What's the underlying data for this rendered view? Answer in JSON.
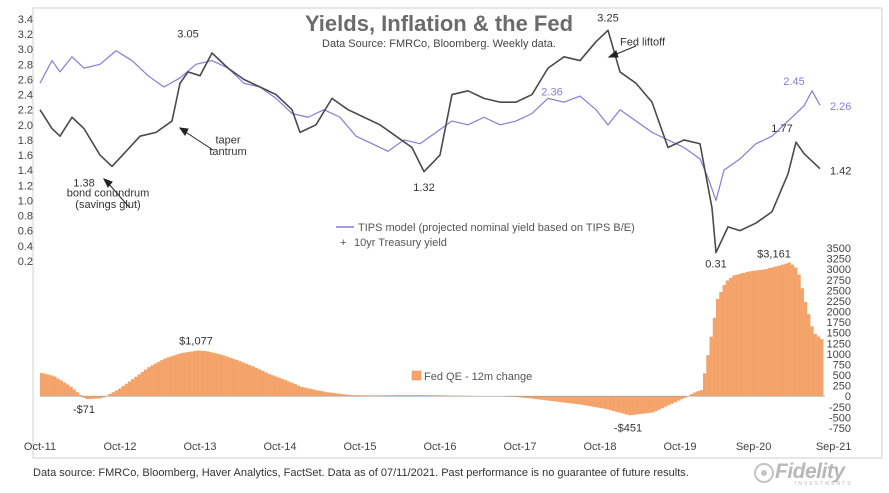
{
  "colors": {
    "tips": "#8b79d9",
    "treasury": "#4a4a4a",
    "qe": "#f4a46a",
    "qe_edge": "#e8894a"
  },
  "chart_data": [
    {
      "type": "line",
      "title": "Yields, Inflation & the Fed",
      "subtitle": "Data Source: FMRCo, Bloomberg. Weekly data.",
      "ylim": [
        0,
        3.4
      ],
      "yticks": [
        "3.4",
        "3.2",
        "3.0",
        "2.8",
        "2.6",
        "2.4",
        "2.2",
        "2.0",
        "1.8",
        "1.6",
        "1.4",
        "1.2",
        "1.0",
        "0.8",
        "0.6",
        "0.4",
        "0.2"
      ],
      "series": [
        {
          "name": "TIPS model (projected nominal yield based on TIPS B/E)",
          "color": "#8b79d9",
          "x": [
            2011.75,
            2011.9,
            2012.0,
            2012.15,
            2012.3,
            2012.5,
            2012.7,
            2012.9,
            2013.1,
            2013.3,
            2013.5,
            2013.7,
            2013.9,
            2014.1,
            2014.3,
            2014.5,
            2014.7,
            2014.9,
            2015.1,
            2015.3,
            2015.5,
            2015.7,
            2015.9,
            2016.1,
            2016.3,
            2016.5,
            2016.7,
            2016.9,
            2017.1,
            2017.3,
            2017.5,
            2017.7,
            2017.9,
            2018.1,
            2018.3,
            2018.5,
            2018.7,
            2018.85,
            2019.0,
            2019.2,
            2019.4,
            2019.6,
            2019.8,
            2020.0,
            2020.1,
            2020.2,
            2020.3,
            2020.5,
            2020.7,
            2020.9,
            2021.1,
            2021.3,
            2021.4,
            2021.5
          ],
          "y": [
            2.55,
            2.85,
            2.7,
            2.9,
            2.75,
            2.8,
            2.98,
            2.85,
            2.65,
            2.5,
            2.62,
            2.8,
            2.85,
            2.75,
            2.55,
            2.5,
            2.35,
            2.15,
            2.1,
            2.2,
            2.1,
            1.85,
            1.75,
            1.65,
            1.8,
            1.75,
            1.9,
            2.05,
            2.0,
            2.1,
            2.0,
            2.05,
            2.15,
            2.35,
            2.3,
            2.38,
            2.2,
            2.0,
            2.2,
            2.05,
            1.9,
            1.8,
            1.7,
            1.55,
            1.3,
            1.0,
            1.4,
            1.55,
            1.75,
            1.85,
            2.05,
            2.25,
            2.45,
            2.26
          ]
        },
        {
          "name": "10yr Treasury yield",
          "color": "#4a4a4a",
          "x": [
            2011.75,
            2011.9,
            2012.0,
            2012.15,
            2012.3,
            2012.5,
            2012.65,
            2012.8,
            2013.0,
            2013.2,
            2013.4,
            2013.5,
            2013.6,
            2013.75,
            2013.9,
            2014.1,
            2014.3,
            2014.5,
            2014.7,
            2014.9,
            2015.0,
            2015.2,
            2015.4,
            2015.6,
            2015.8,
            2016.0,
            2016.2,
            2016.4,
            2016.55,
            2016.75,
            2016.9,
            2017.1,
            2017.3,
            2017.5,
            2017.7,
            2017.9,
            2018.1,
            2018.3,
            2018.5,
            2018.7,
            2018.85,
            2019.0,
            2019.2,
            2019.4,
            2019.6,
            2019.8,
            2020.0,
            2020.15,
            2020.2,
            2020.35,
            2020.5,
            2020.7,
            2020.9,
            2021.0,
            2021.1,
            2021.2,
            2021.3,
            2021.5
          ],
          "y": [
            2.2,
            1.95,
            1.85,
            2.1,
            1.95,
            1.6,
            1.45,
            1.62,
            1.85,
            1.9,
            2.05,
            2.55,
            2.7,
            2.65,
            2.95,
            2.75,
            2.6,
            2.5,
            2.4,
            2.2,
            1.9,
            2.0,
            2.35,
            2.2,
            2.1,
            2.0,
            1.85,
            1.7,
            1.38,
            1.6,
            2.4,
            2.45,
            2.35,
            2.3,
            2.3,
            2.4,
            2.75,
            2.9,
            2.85,
            3.1,
            3.25,
            2.7,
            2.55,
            2.3,
            1.7,
            1.8,
            1.75,
            0.9,
            0.31,
            0.65,
            0.6,
            0.7,
            0.85,
            1.1,
            1.35,
            1.77,
            1.62,
            1.42
          ]
        }
      ],
      "annotations": [
        {
          "text": "3.05",
          "x": 2013.6,
          "y": 3.05
        },
        {
          "text": "3.25",
          "x": 2018.85,
          "y": 3.25
        },
        {
          "text": "Fed liftoff",
          "x": 2019.0,
          "y": 3.1
        },
        {
          "text": "2.36",
          "x": 2018.3,
          "y": 2.36
        },
        {
          "text": "2.45",
          "x": 2021.3,
          "y": 2.45
        },
        {
          "text": "2.26",
          "x": 2021.5,
          "y": 2.26
        },
        {
          "text": "1.77",
          "x": 2021.2,
          "y": 1.77
        },
        {
          "text": "1.42",
          "x": 2021.5,
          "y": 1.42
        },
        {
          "text": "1.38",
          "x": 2012.3,
          "y": 1.38
        },
        {
          "text": "1.32",
          "x": 2016.55,
          "y": 1.32
        },
        {
          "text": "0.31",
          "x": 2020.2,
          "y": 0.31
        },
        {
          "text": "bond conundrum",
          "x": 2012.6,
          "y": 1.05
        },
        {
          "text": "(savings glut)",
          "x": 2012.6,
          "y": 0.9
        },
        {
          "text": "taper",
          "x": 2014.1,
          "y": 1.75
        },
        {
          "text": "tantrum",
          "x": 2014.1,
          "y": 1.6
        }
      ]
    },
    {
      "type": "bar",
      "name": "Fed QE - 12m change",
      "color": "#f4a46a",
      "ylim": [
        -750,
        3500
      ],
      "yticks": [
        "3500",
        "3250",
        "3000",
        "2750",
        "2500",
        "2250",
        "2000",
        "1750",
        "1500",
        "1250",
        "1000",
        "750",
        "500",
        "250",
        "0",
        "-250",
        "-500",
        "-750"
      ],
      "x_tick_labels": [
        "Oct-11",
        "Oct-12",
        "Oct-13",
        "Oct-14",
        "Oct-15",
        "Oct-16",
        "Oct-17",
        "Oct-18",
        "Oct-19",
        "Sep-20",
        "Sep-21"
      ],
      "x": [
        2011.75,
        2011.9,
        2012.1,
        2012.3,
        2012.5,
        2012.7,
        2012.9,
        2013.1,
        2013.3,
        2013.5,
        2013.7,
        2013.8,
        2014.0,
        2014.2,
        2014.4,
        2014.6,
        2014.8,
        2015.0,
        2015.3,
        2015.6,
        2015.9,
        2016.2,
        2016.5,
        2016.8,
        2017.1,
        2017.4,
        2017.7,
        2017.9,
        2018.2,
        2018.5,
        2018.8,
        2019.1,
        2019.4,
        2019.6,
        2019.8,
        2019.9,
        2020.0,
        2020.1,
        2020.2,
        2020.3,
        2020.4,
        2020.6,
        2020.8,
        2021.0,
        2021.1,
        2021.2,
        2021.3,
        2021.4,
        2021.5
      ],
      "values": [
        550,
        480,
        250,
        -71,
        -50,
        150,
        420,
        700,
        900,
        1020,
        1077,
        1070,
        980,
        850,
        700,
        520,
        380,
        220,
        100,
        30,
        20,
        30,
        30,
        20,
        10,
        0,
        -20,
        -60,
        -130,
        -200,
        -300,
        -451,
        -380,
        -200,
        -30,
        80,
        150,
        1200,
        2300,
        2700,
        2850,
        2950,
        3000,
        3100,
        3161,
        3000,
        2200,
        1500,
        1350
      ],
      "annotations": [
        {
          "text": "-$71",
          "x": 2012.3,
          "y": -71
        },
        {
          "text": "$1,077",
          "x": 2013.7,
          "y": 1077
        },
        {
          "text": "-$451",
          "x": 2019.1,
          "y": -451
        },
        {
          "text": "$3,161",
          "x": 2021.1,
          "y": 3161
        }
      ]
    }
  ],
  "footer": "Data source: FMRCo, Bloomberg, Haver Analytics, FactSet. Data as of 07/11/2021. Past performance is no guarantee of future results.",
  "logo": {
    "text": "Fidelity",
    "subtext": "INVESTMENTS"
  }
}
